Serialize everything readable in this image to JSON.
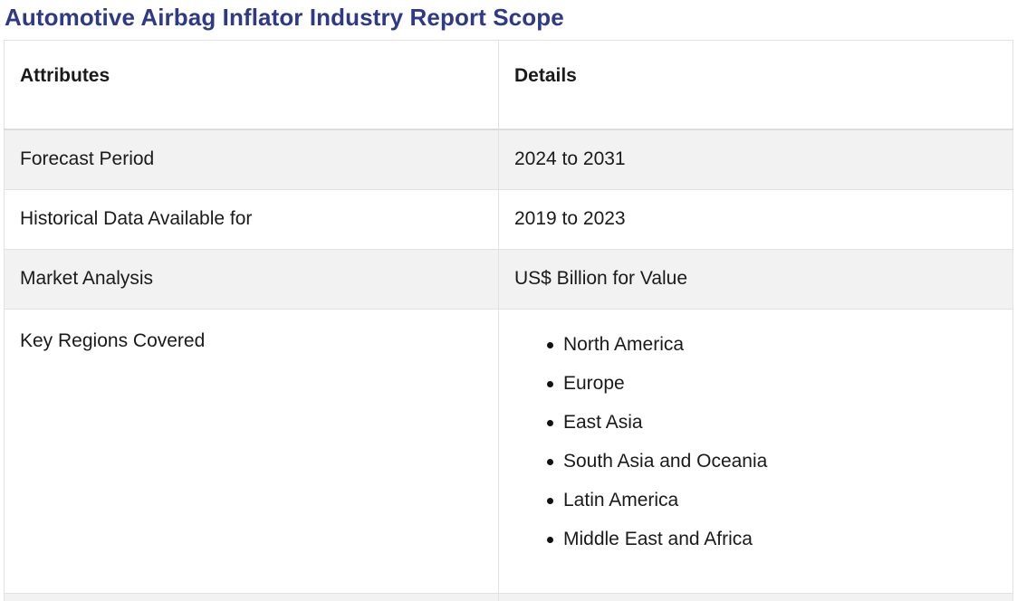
{
  "title": "Automotive Airbag Inflator Industry Report Scope",
  "table": {
    "headers": {
      "attributes": "Attributes",
      "details": "Details"
    },
    "rows": [
      {
        "attribute": "Forecast Period",
        "detail": "2024 to 2031"
      },
      {
        "attribute": "Historical Data Available for",
        "detail": "2019 to 2023"
      },
      {
        "attribute": "Market Analysis",
        "detail": "US$ Billion for Value"
      }
    ],
    "regions": {
      "attribute": "Key Regions Covered",
      "items": [
        "North America",
        "Europe",
        "East Asia",
        "South Asia and Oceania",
        "Latin America",
        "Middle East and Africa"
      ]
    }
  }
}
